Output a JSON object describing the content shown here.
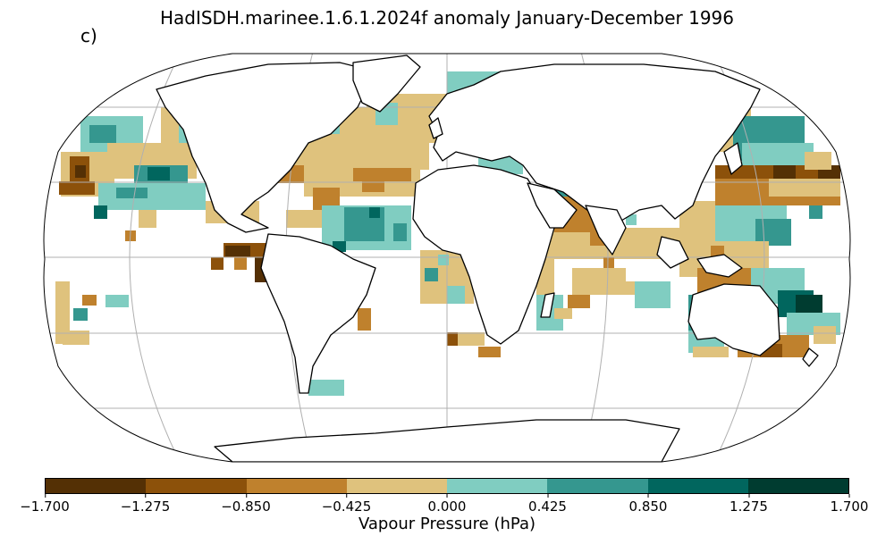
{
  "title": "HadISDH.marinee.1.6.1.2024f anomaly January-December 1996",
  "panel_label": "c)",
  "colorbar": {
    "label": "Vapour Pressure (hPa)",
    "ticks": [
      "−1.700",
      "−1.275",
      "−0.850",
      "−0.425",
      "0.000",
      "0.425",
      "0.850",
      "1.275",
      "1.700"
    ],
    "colors": [
      "#543005",
      "#8c510a",
      "#bf812d",
      "#dfc27d",
      "#80cdc1",
      "#35978f",
      "#01665e",
      "#003c30"
    ]
  },
  "map": {
    "projection": "Robinson",
    "land_fill": "#ffffff",
    "coastline_color": "#000000",
    "gridline_color": "#b0b0b0"
  }
}
